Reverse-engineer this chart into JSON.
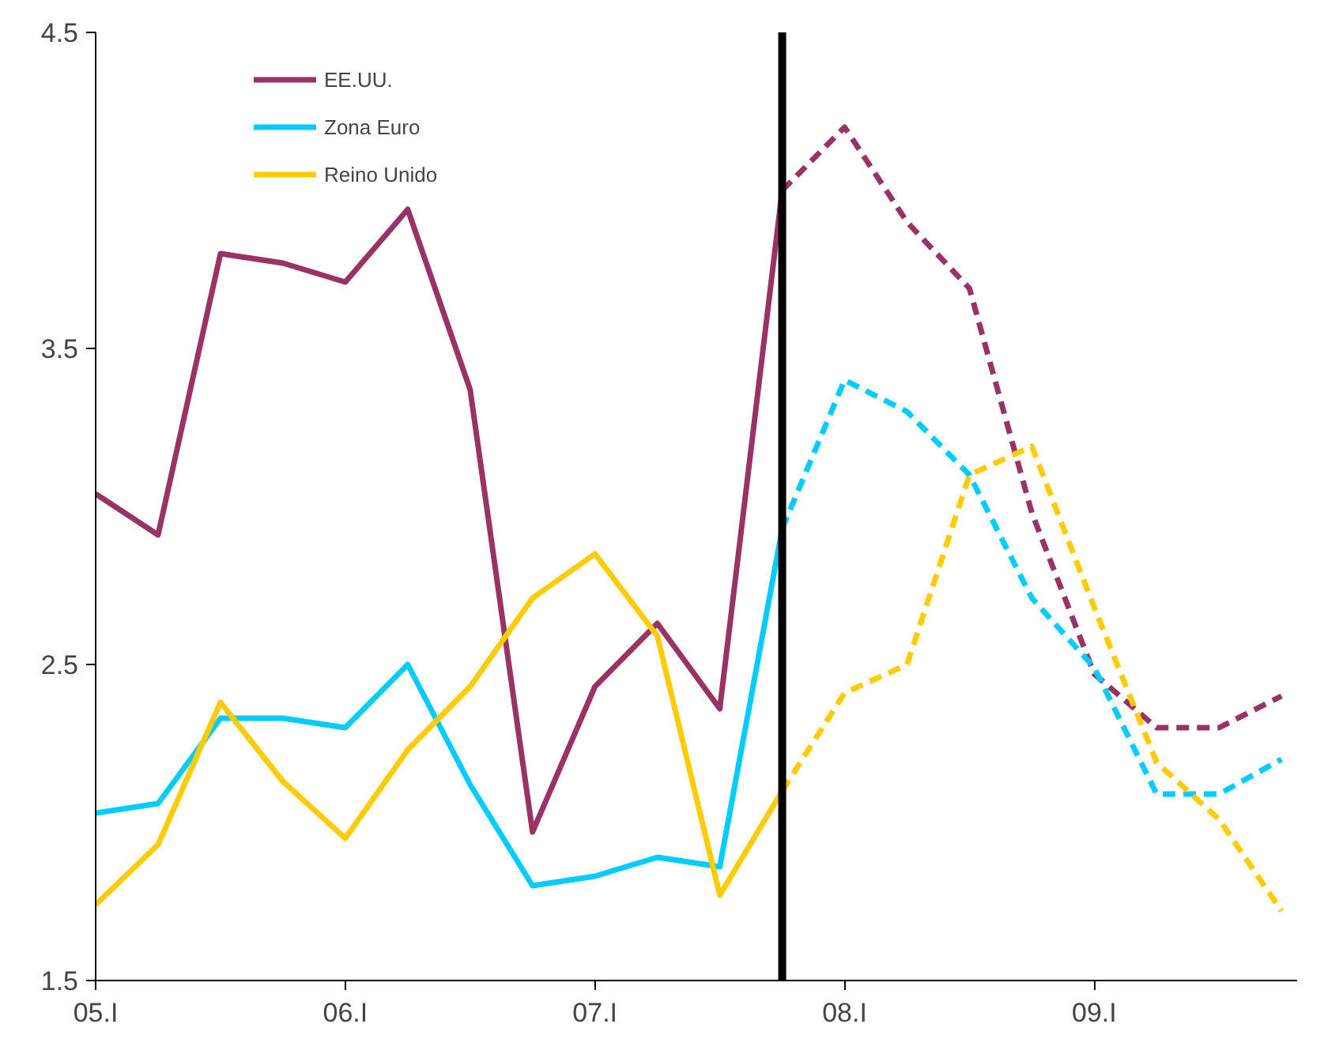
{
  "chart_data": {
    "type": "line",
    "categories": [
      "05.I",
      null,
      null,
      null,
      "06.I",
      null,
      null,
      null,
      "07.I",
      null,
      null,
      null,
      "08.I",
      null,
      null,
      null,
      "09.I",
      null,
      null,
      null
    ],
    "series": [
      {
        "name": "EE.UU.",
        "color": "#993366",
        "line_style": "solid",
        "values": [
          3.04,
          2.91,
          3.8,
          3.77,
          3.71,
          3.94,
          3.37,
          1.97,
          2.43,
          2.63,
          2.36,
          4.0,
          null,
          null,
          null,
          null,
          null,
          null,
          null,
          null
        ]
      },
      {
        "name": "Zona Euro",
        "color": "#00ccff",
        "line_style": "solid",
        "values": [
          2.03,
          2.06,
          2.33,
          2.33,
          2.3,
          2.5,
          2.12,
          1.8,
          1.83,
          1.89,
          1.86,
          2.93,
          null,
          null,
          null,
          null,
          null,
          null,
          null,
          null
        ]
      },
      {
        "name": "Reino Unido",
        "color": "#ffcc00",
        "line_style": "solid",
        "values": [
          1.74,
          1.93,
          2.38,
          2.13,
          1.95,
          2.23,
          2.43,
          2.71,
          2.85,
          2.59,
          1.77,
          2.1,
          null,
          null,
          null,
          null,
          null,
          null,
          null,
          null
        ]
      },
      {
        "color": "#993366",
        "line_style": "dashed",
        "values": [
          null,
          null,
          null,
          null,
          null,
          null,
          null,
          null,
          null,
          null,
          null,
          4.0,
          4.2,
          3.9,
          3.69,
          2.98,
          2.47,
          2.3,
          2.3,
          2.4
        ]
      },
      {
        "color": "#00ccff",
        "line_style": "dashed",
        "values": [
          null,
          null,
          null,
          null,
          null,
          null,
          null,
          null,
          null,
          null,
          null,
          2.93,
          3.4,
          3.3,
          3.1,
          2.71,
          2.49,
          2.09,
          2.09,
          2.2
        ]
      },
      {
        "color": "#ffcc00",
        "line_style": "dashed",
        "values": [
          null,
          null,
          null,
          null,
          null,
          null,
          null,
          null,
          null,
          null,
          null,
          2.1,
          2.41,
          2.5,
          3.1,
          3.19,
          2.68,
          2.19,
          2.01,
          1.72
        ]
      }
    ],
    "ylim": [
      1.5,
      4.5
    ],
    "yticks": [
      1.5,
      2.5,
      3.5,
      4.5
    ],
    "legend": "top left"
  }
}
